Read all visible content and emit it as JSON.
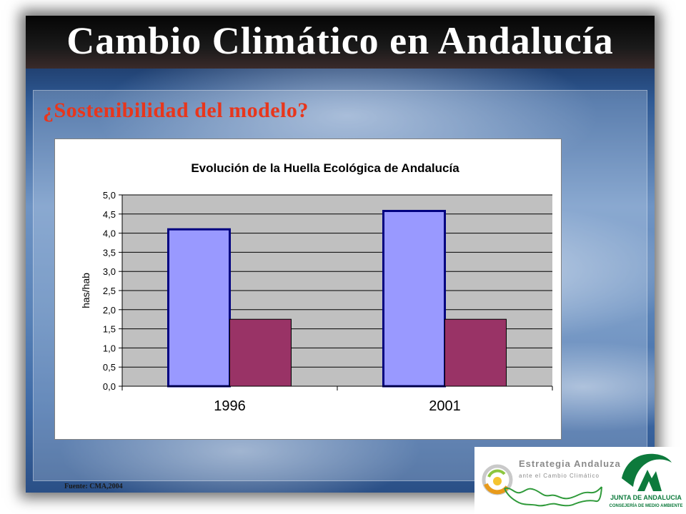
{
  "slide": {
    "title": "Cambio Climático en Andalucía",
    "subtitle": "¿Sostenibilidad del modelo?",
    "source": "Fuente: CMA,2004"
  },
  "logos": {
    "estrategia_title": "Estrategia Andaluza",
    "estrategia_subtitle": "ante el Cambio Climático",
    "junta_name": "JUNTA DE ANDALUCIA",
    "junta_department": "CONSEJERÍA DE MEDIO AMBIENTE"
  },
  "colors": {
    "title_text": "#ffffff",
    "subtitle_text": "#e8361c",
    "plot_area": "#c0c0c0",
    "series_1": "#9999ff",
    "series_1_border": "#000080",
    "series_2": "#993366"
  },
  "chart_data": {
    "type": "bar",
    "title": "Evolución de la Huella Ecológica de Andalucía",
    "xlabel": "",
    "ylabel": "has/hab",
    "categories": [
      "1996",
      "2001"
    ],
    "series": [
      {
        "values": [
          4.1,
          4.58
        ]
      },
      {
        "values": [
          1.75,
          1.75
        ]
      }
    ],
    "ylim": [
      0,
      5
    ],
    "ytick_step": 0.5,
    "ytick_labels": [
      "0,0",
      "0,5",
      "1,0",
      "1,5",
      "2,0",
      "2,5",
      "3,0",
      "3,5",
      "4,0",
      "4,5",
      "5,0"
    ],
    "grid": true,
    "legend": "none"
  }
}
